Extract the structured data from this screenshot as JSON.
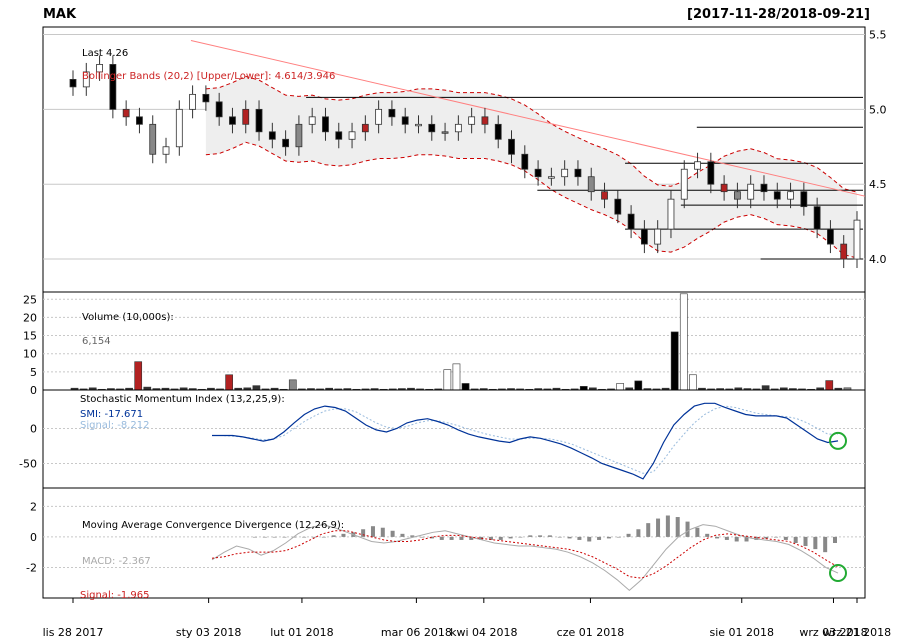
{
  "header": {
    "symbol": "MAK",
    "date_range": "[2017-11-28/2018-09-21]"
  },
  "colors": {
    "up": "#ffffff",
    "down": "#000000",
    "down_gap": "#b22222",
    "up_gap": "#888888",
    "bb_line": "#cc0000",
    "bb_fill": "#eeeeee",
    "trend_line": "#ff8080",
    "smi": "#003399",
    "smi_signal": "#99bbdd",
    "macd": "#aaaaaa",
    "macd_signal": "#cc0000",
    "marker": "#22aa33"
  },
  "chart_data": [
    {
      "panel": "price",
      "type": "candlestick",
      "title": "MAK",
      "legend_last": "Last 4.26",
      "legend_bb": "Bollinger Bands (20,2) [Upper/Lower]: 4.614/3.946",
      "ylim": [
        3.78,
        5.55
      ],
      "yticks": [
        4.0,
        4.5,
        5.0,
        5.5
      ],
      "ytick_labels": [
        "4.0",
        "4.5",
        "5.0",
        "5.5"
      ],
      "hlines": [
        {
          "y": 5.08,
          "from": 0.33
        },
        {
          "y": 4.88,
          "from": 0.82
        },
        {
          "y": 4.64,
          "from": 0.73
        },
        {
          "y": 4.46,
          "from": 0.62
        },
        {
          "y": 4.36,
          "from": 0.8
        },
        {
          "y": 4.2,
          "from": 0.73
        },
        {
          "y": 4.0,
          "from": 0.9
        }
      ],
      "trend": [
        [
          0.18,
          5.46
        ],
        [
          1.0,
          4.42
        ]
      ],
      "close_series": [
        5.15,
        5.25,
        5.3,
        5.0,
        4.95,
        4.9,
        4.7,
        4.75,
        5.0,
        5.1,
        5.05,
        4.95,
        4.9,
        5.0,
        4.85,
        4.8,
        4.75,
        4.9,
        4.95,
        4.85,
        4.8,
        4.85,
        4.9,
        5.0,
        4.95,
        4.9,
        4.9,
        4.85,
        4.85,
        4.9,
        4.95,
        4.9,
        4.8,
        4.7,
        4.6,
        4.55,
        4.55,
        4.6,
        4.55,
        4.45,
        4.4,
        4.3,
        4.2,
        4.1,
        4.2,
        4.4,
        4.6,
        4.65,
        4.5,
        4.45,
        4.4,
        4.5,
        4.45,
        4.4,
        4.45,
        4.35,
        4.2,
        4.1,
        4.0,
        4.26
      ]
    },
    {
      "panel": "volume",
      "type": "bar",
      "title": "Volume (10,000s):",
      "last_value": "6,154",
      "ylim": [
        0,
        27
      ],
      "yticks": [
        0,
        5,
        10,
        15,
        20,
        25
      ],
      "ytick_labels": [
        "0",
        "5",
        "10",
        "15",
        "20",
        "25"
      ],
      "values": [
        0.5,
        0.3,
        0.6,
        0.2,
        0.4,
        0.3,
        0.5,
        7.8,
        0.8,
        0.4,
        0.5,
        0.3,
        0.6,
        0.4,
        0.2,
        0.5,
        0.3,
        4.2,
        0.5,
        0.6,
        1.2,
        0.3,
        0.5,
        0.2,
        2.8,
        0.3,
        0.4,
        0.3,
        0.5,
        0.3,
        0.4,
        0.2,
        0.3,
        0.4,
        0.2,
        0.3,
        0.4,
        0.5,
        0.3,
        0.2,
        0.3,
        5.6,
        7.2,
        1.8,
        0.3,
        0.4,
        0.2,
        0.3,
        0.4,
        0.3,
        0.2,
        0.4,
        0.3,
        0.5,
        0.2,
        0.3,
        1.0,
        0.6,
        0.2,
        0.3,
        1.8,
        0.6,
        2.5,
        0.4,
        0.3,
        0.5,
        16.0,
        26.5,
        4.2,
        0.5,
        0.3,
        0.4,
        0.3,
        0.6,
        0.4,
        0.3,
        1.2,
        0.3,
        0.6,
        0.4,
        0.3,
        0.2,
        0.6,
        2.6,
        0.5,
        0.6
      ],
      "colors_idx": {
        "7": "#b22222",
        "17": "#b22222",
        "24": "#888888",
        "41": "#ffffff",
        "42": "#ffffff",
        "43": "#000000",
        "56": "#000000",
        "60": "#ffffff",
        "62": "#000000",
        "66": "#000000",
        "67": "#ffffff",
        "68": "#ffffff",
        "83": "#b22222",
        "85": "#888888"
      }
    },
    {
      "panel": "smi",
      "type": "line",
      "title": "Stochastic Momentum Index (13,2,25,9):",
      "smi_label": "SMI: -17.671",
      "signal_label": "Signal: -8.212",
      "ylim": [
        -85,
        55
      ],
      "yticks": [
        -50,
        0
      ],
      "ytick_labels": [
        "-50",
        "0"
      ],
      "smi": [
        -10,
        -10,
        -10,
        -12,
        -15,
        -18,
        -15,
        -5,
        8,
        20,
        28,
        32,
        30,
        25,
        15,
        5,
        -2,
        -5,
        0,
        8,
        12,
        14,
        10,
        5,
        -2,
        -8,
        -12,
        -15,
        -18,
        -20,
        -15,
        -12,
        -14,
        -18,
        -22,
        -28,
        -35,
        -42,
        -50,
        -55,
        -60,
        -65,
        -72,
        -50,
        -20,
        5,
        20,
        32,
        36,
        36,
        30,
        25,
        20,
        18,
        18,
        18,
        15,
        5,
        -5,
        -15,
        -20,
        -17.671
      ],
      "signal": [
        -10,
        -10,
        -11,
        -12,
        -14,
        -16,
        -15,
        -10,
        0,
        10,
        18,
        25,
        28,
        28,
        24,
        16,
        8,
        2,
        0,
        3,
        8,
        11,
        11,
        8,
        4,
        -1,
        -5,
        -9,
        -12,
        -15,
        -15,
        -14,
        -14,
        -15,
        -18,
        -22,
        -28,
        -34,
        -40,
        -46,
        -52,
        -58,
        -64,
        -62,
        -45,
        -25,
        -8,
        8,
        20,
        28,
        32,
        30,
        26,
        22,
        20,
        18,
        17,
        14,
        8,
        0,
        -8,
        -8.212
      ]
    },
    {
      "panel": "macd",
      "type": "line+histogram",
      "title": "Moving Average Convergence Divergence (12,26,9):",
      "macd_label": "MACD: -2.367",
      "signal_label": "Signal: -1.965",
      "ylim": [
        -4.0,
        3.2
      ],
      "yticks": [
        -2,
        0,
        2
      ],
      "ytick_labels": [
        "-2",
        "0",
        "2"
      ],
      "macd": [
        -1.5,
        -1.0,
        -0.6,
        -0.8,
        -1.2,
        -0.9,
        -0.4,
        0.2,
        0.6,
        0.8,
        0.6,
        0.3,
        0.0,
        -0.3,
        -0.4,
        -0.3,
        -0.1,
        0.1,
        0.3,
        0.4,
        0.2,
        0.0,
        -0.2,
        -0.4,
        -0.5,
        -0.6,
        -0.6,
        -0.7,
        -0.8,
        -1.0,
        -1.3,
        -1.7,
        -2.2,
        -2.8,
        -3.5,
        -2.8,
        -1.8,
        -0.8,
        0.0,
        0.5,
        0.8,
        0.7,
        0.4,
        0.1,
        -0.1,
        -0.2,
        -0.3,
        -0.5,
        -0.9,
        -1.4,
        -2.0,
        -2.367
      ],
      "signal": [
        -1.4,
        -1.3,
        -1.1,
        -1.0,
        -1.0,
        -1.0,
        -0.9,
        -0.6,
        -0.2,
        0.2,
        0.4,
        0.4,
        0.2,
        0.0,
        -0.2,
        -0.3,
        -0.3,
        -0.2,
        0.0,
        0.1,
        0.1,
        0.0,
        -0.1,
        -0.2,
        -0.3,
        -0.4,
        -0.5,
        -0.6,
        -0.7,
        -0.8,
        -1.0,
        -1.3,
        -1.7,
        -2.1,
        -2.6,
        -2.7,
        -2.4,
        -1.9,
        -1.3,
        -0.7,
        -0.2,
        0.1,
        0.2,
        0.1,
        0.0,
        -0.1,
        -0.2,
        -0.3,
        -0.6,
        -1.0,
        -1.5,
        -1.965
      ],
      "hist": [
        0,
        0,
        0,
        0,
        0,
        0,
        0,
        0,
        0.1,
        0.2,
        0.3,
        0.5,
        0.7,
        0.6,
        0.4,
        0.2,
        0.1,
        0,
        -0.1,
        -0.2,
        -0.2,
        -0.2,
        -0.2,
        -0.2,
        -0.2,
        -0.2,
        -0.1,
        0,
        0.1,
        0.1,
        0.1,
        0.0,
        -0.1,
        -0.2,
        -0.3,
        -0.2,
        -0.1,
        0,
        0.2,
        0.5,
        0.9,
        1.2,
        1.4,
        1.3,
        1.0,
        0.6,
        0.2,
        -0.1,
        -0.2,
        -0.3,
        -0.3,
        -0.2,
        -0.1,
        0,
        -0.2,
        -0.4,
        -0.6,
        -0.8,
        -1.0,
        -0.4
      ]
    }
  ],
  "x_axis": {
    "labels": [
      "lis 28 2017",
      "sty 03 2018",
      "lut 01 2018",
      "mar 06 2018",
      "kwi 04 2018",
      "cze 01 2018",
      "sie 01 2018",
      "wrz 03 2018",
      "wrz 21 2018"
    ],
    "positions": [
      0.0,
      0.173,
      0.292,
      0.438,
      0.524,
      0.66,
      0.853,
      0.97,
      1.0
    ]
  }
}
